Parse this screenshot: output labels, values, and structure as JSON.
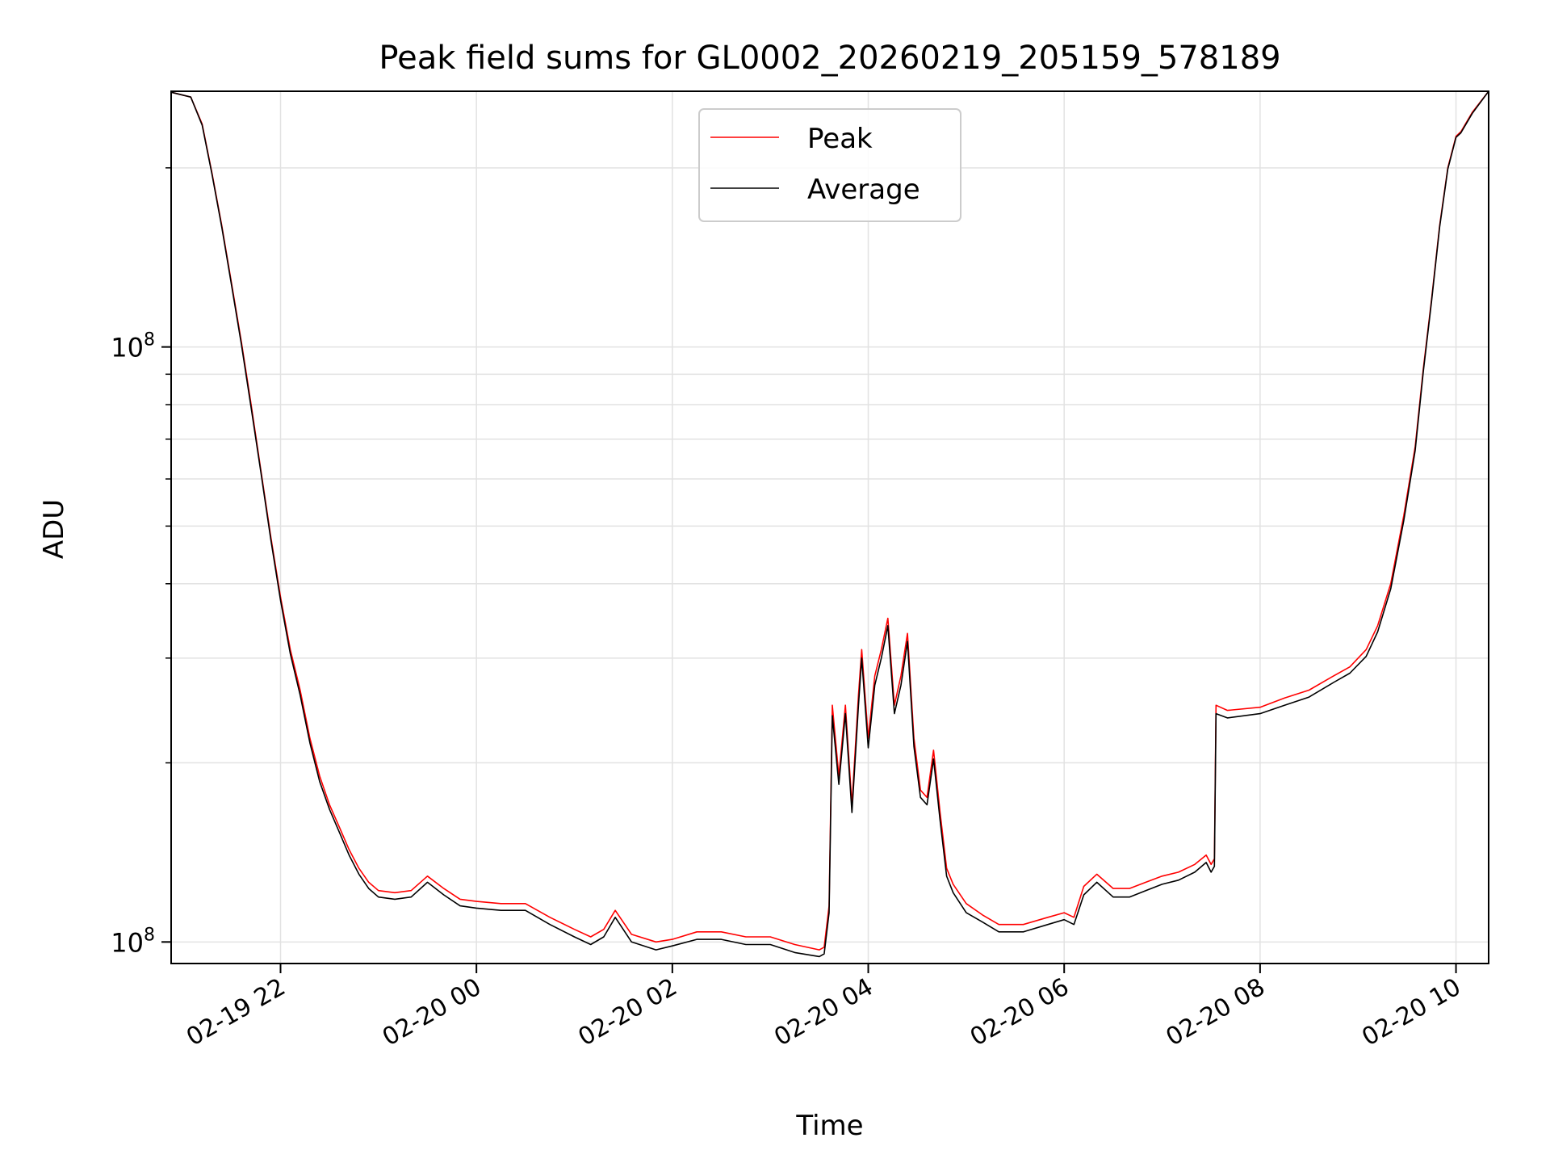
{
  "chart_data": {
    "type": "line",
    "title": "Peak field sums for GL0002_20260219_205159_578189",
    "xlabel": "Time",
    "ylabel": "ADU",
    "yscale": "log",
    "grid": true,
    "legend_position": "upper center",
    "x_ticks": [
      "2026-02-19 22:00",
      "2026-02-20 00:00",
      "2026-02-20 02:00",
      "2026-02-20 04:00",
      "2026-02-20 06:00",
      "2026-02-20 08:00",
      "2026-02-20 10:00"
    ],
    "x_tick_labels": [
      "02-19 22",
      "02-20 00",
      "02-20 02",
      "02-20 04",
      "02-20 06",
      "02-20 08",
      "02-20 10"
    ],
    "y_major_tick_label": "10^8",
    "x_range": [
      "2026-02-19 20:53",
      "2026-02-20 10:20"
    ],
    "y_range": [
      9200000,
      269000000
    ],
    "x": [
      "2026-02-19 20:53",
      "2026-02-19 21:05",
      "2026-02-19 21:12",
      "2026-02-19 21:18",
      "2026-02-19 21:24",
      "2026-02-19 21:30",
      "2026-02-19 21:36",
      "2026-02-19 21:42",
      "2026-02-19 21:48",
      "2026-02-19 21:54",
      "2026-02-19 22:00",
      "2026-02-19 22:06",
      "2026-02-19 22:12",
      "2026-02-19 22:18",
      "2026-02-19 22:24",
      "2026-02-19 22:30",
      "2026-02-19 22:36",
      "2026-02-19 22:42",
      "2026-02-19 22:48",
      "2026-02-19 22:54",
      "2026-02-19 23:00",
      "2026-02-19 23:10",
      "2026-02-19 23:20",
      "2026-02-19 23:30",
      "2026-02-19 23:40",
      "2026-02-19 23:50",
      "2026-02-20 00:00",
      "2026-02-20 00:15",
      "2026-02-20 00:30",
      "2026-02-20 00:45",
      "2026-02-20 01:00",
      "2026-02-20 01:10",
      "2026-02-20 01:18",
      "2026-02-20 01:25",
      "2026-02-20 01:35",
      "2026-02-20 01:50",
      "2026-02-20 02:00",
      "2026-02-20 02:15",
      "2026-02-20 02:30",
      "2026-02-20 02:45",
      "2026-02-20 03:00",
      "2026-02-20 03:15",
      "2026-02-20 03:30",
      "2026-02-20 03:33",
      "2026-02-20 03:36",
      "2026-02-20 03:38",
      "2026-02-20 03:42",
      "2026-02-20 03:46",
      "2026-02-20 03:50",
      "2026-02-20 03:54",
      "2026-02-20 03:56",
      "2026-02-20 04:00",
      "2026-02-20 04:04",
      "2026-02-20 04:08",
      "2026-02-20 04:12",
      "2026-02-20 04:16",
      "2026-02-20 04:20",
      "2026-02-20 04:24",
      "2026-02-20 04:28",
      "2026-02-20 04:32",
      "2026-02-20 04:36",
      "2026-02-20 04:40",
      "2026-02-20 04:44",
      "2026-02-20 04:48",
      "2026-02-20 04:52",
      "2026-02-20 05:00",
      "2026-02-20 05:10",
      "2026-02-20 05:20",
      "2026-02-20 05:35",
      "2026-02-20 05:50",
      "2026-02-20 06:00",
      "2026-02-20 06:06",
      "2026-02-20 06:12",
      "2026-02-20 06:20",
      "2026-02-20 06:30",
      "2026-02-20 06:40",
      "2026-02-20 06:50",
      "2026-02-20 07:00",
      "2026-02-20 07:10",
      "2026-02-20 07:20",
      "2026-02-20 07:27",
      "2026-02-20 07:30",
      "2026-02-20 07:32",
      "2026-02-20 07:33",
      "2026-02-20 07:40",
      "2026-02-20 08:00",
      "2026-02-20 08:15",
      "2026-02-20 08:30",
      "2026-02-20 08:45",
      "2026-02-20 08:55",
      "2026-02-20 09:05",
      "2026-02-20 09:12",
      "2026-02-20 09:20",
      "2026-02-20 09:28",
      "2026-02-20 09:35",
      "2026-02-20 09:40",
      "2026-02-20 09:45",
      "2026-02-20 09:50",
      "2026-02-20 09:55",
      "2026-02-20 10:00",
      "2026-02-20 10:03",
      "2026-02-20 10:10",
      "2026-02-20 10:20"
    ],
    "series": [
      {
        "name": "Peak",
        "color": "#ff0000",
        "values": [
          268000000,
          263000000,
          237000000,
          196000000,
          160000000,
          128000000,
          102000000,
          80000000,
          62000000,
          48000000,
          38000000,
          31000000,
          26500000,
          22000000,
          19000000,
          17000000,
          15600000,
          14300000,
          13300000,
          12600000,
          12200000,
          12100000,
          12200000,
          12900000,
          12300000,
          11800000,
          11700000,
          11600000,
          11600000,
          11000000,
          10500000,
          10200000,
          10500000,
          11300000,
          10300000,
          10000000,
          10100000,
          10400000,
          10400000,
          10200000,
          10200000,
          9900000,
          9700000,
          9800000,
          11500000,
          25000000,
          19000000,
          25000000,
          17000000,
          26000000,
          31000000,
          22000000,
          28000000,
          31000000,
          35000000,
          25000000,
          28000000,
          33000000,
          22000000,
          18000000,
          17500000,
          21000000,
          16500000,
          13300000,
          12500000,
          11600000,
          11100000,
          10700000,
          10700000,
          11000000,
          11200000,
          11000000,
          12400000,
          13000000,
          12300000,
          12300000,
          12600000,
          12900000,
          13100000,
          13500000,
          14000000,
          13500000,
          13800000,
          25000000,
          24500000,
          24800000,
          25700000,
          26500000,
          28000000,
          29000000,
          31000000,
          34000000,
          40000000,
          52000000,
          68000000,
          92000000,
          120000000,
          160000000,
          200000000,
          226000000,
          230000000,
          248000000,
          269000000
        ]
      },
      {
        "name": "Average",
        "color": "#000000",
        "values": [
          268000000,
          263000000,
          236000000,
          195000000,
          159000000,
          127000000,
          101000000,
          79000000,
          61500000,
          47500000,
          37500000,
          30500000,
          26000000,
          21600000,
          18600000,
          16700000,
          15300000,
          14000000,
          13000000,
          12300000,
          11900000,
          11800000,
          11900000,
          12600000,
          12000000,
          11500000,
          11400000,
          11300000,
          11300000,
          10700000,
          10200000,
          9900000,
          10200000,
          11000000,
          10000000,
          9700000,
          9850000,
          10100000,
          10100000,
          9900000,
          9900000,
          9600000,
          9450000,
          9550000,
          11200000,
          24000000,
          18400000,
          24200000,
          16500000,
          25000000,
          30000000,
          21200000,
          27000000,
          30000000,
          34000000,
          24200000,
          27000000,
          32000000,
          21300000,
          17500000,
          17000000,
          20300000,
          16000000,
          12900000,
          12100000,
          11200000,
          10800000,
          10400000,
          10400000,
          10700000,
          10900000,
          10700000,
          12000000,
          12600000,
          11900000,
          11900000,
          12200000,
          12500000,
          12700000,
          13100000,
          13600000,
          13100000,
          13400000,
          24200000,
          23800000,
          24200000,
          25000000,
          25800000,
          27300000,
          28300000,
          30200000,
          33200000,
          39200000,
          51000000,
          67000000,
          91000000,
          119000000,
          159000000,
          199000000,
          225000000,
          229000000,
          247000000,
          269000000
        ]
      }
    ]
  }
}
